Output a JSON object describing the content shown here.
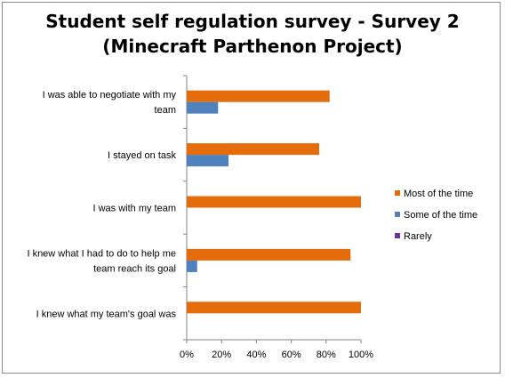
{
  "chart_data": {
    "type": "bar",
    "orientation": "horizontal",
    "title_line1": "Student self regulation survey - Survey 2",
    "title_line2": "(Minecraft Parthenon Project)",
    "categories": [
      [
        "I was able to negotiate with my",
        "team"
      ],
      [
        "I stayed on task"
      ],
      [
        "I was with my team"
      ],
      [
        "I knew what I had to do to help me",
        "team reach its  goal"
      ],
      [
        "I knew what my team's goal was"
      ]
    ],
    "series": [
      {
        "name": "Most of the time",
        "color": "#E46C0A",
        "values": [
          82,
          76,
          100,
          94,
          100
        ]
      },
      {
        "name": "Some of the time",
        "color": "#4F81BD",
        "values": [
          18,
          24,
          0,
          6,
          0
        ]
      },
      {
        "name": "Rarely",
        "color": "#7030A0",
        "values": [
          0,
          0,
          0,
          0,
          0
        ]
      }
    ],
    "xlim": [
      0,
      100
    ],
    "ticks": [
      "0%",
      "20%",
      "40%",
      "60%",
      "80%",
      "100%"
    ],
    "legend_position": "right"
  }
}
